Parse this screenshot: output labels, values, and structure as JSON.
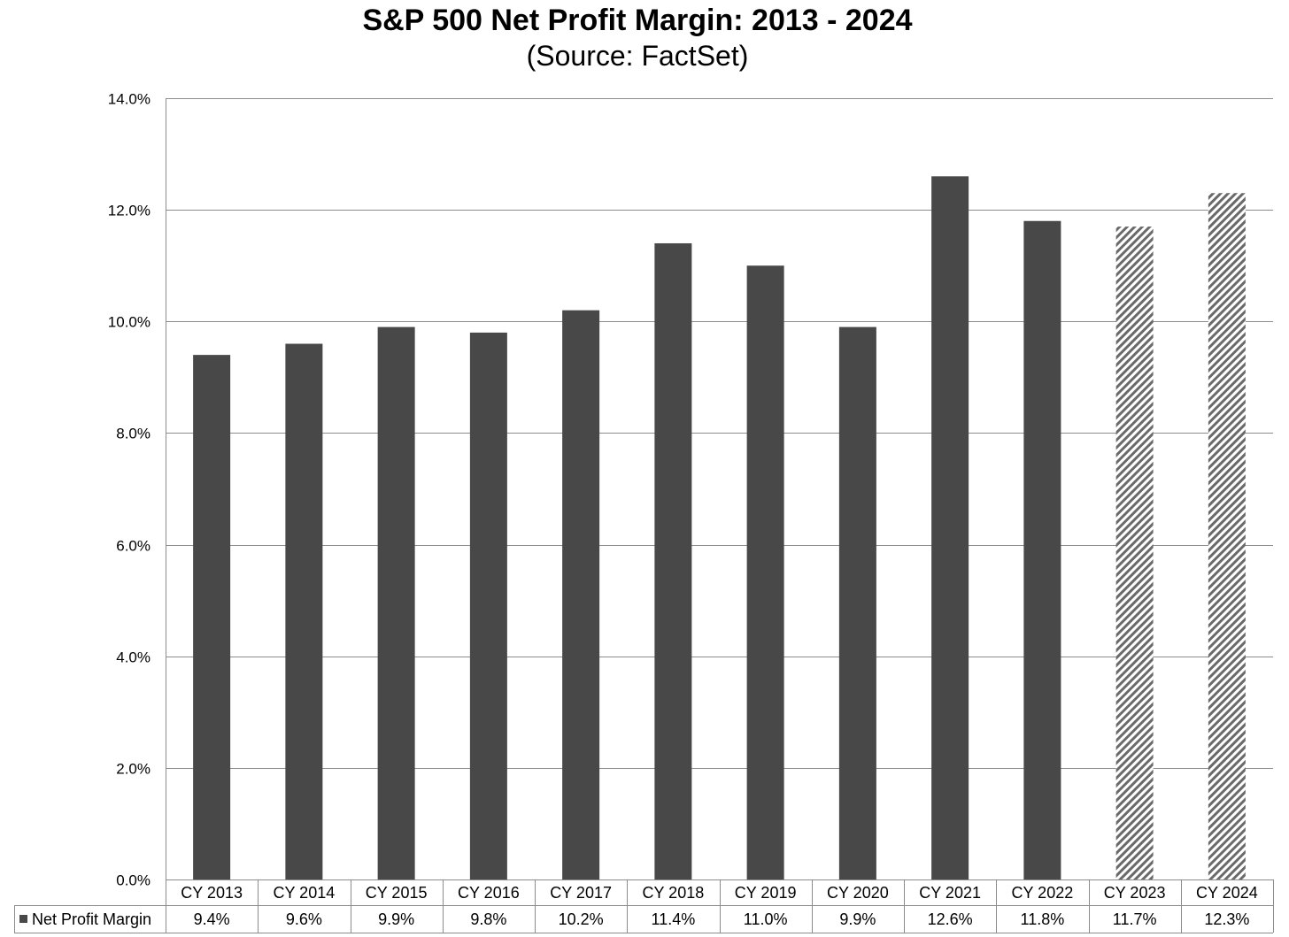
{
  "chart_data": {
    "type": "bar",
    "title": "S&P 500 Net Profit Margin: 2013 - 2024",
    "subtitle": "(Source: FactSet)",
    "categories": [
      "CY 2013",
      "CY 2014",
      "CY 2015",
      "CY 2016",
      "CY 2017",
      "CY 2018",
      "CY 2019",
      "CY 2020",
      "CY 2021",
      "CY 2022",
      "CY 2023",
      "CY 2024"
    ],
    "series": [
      {
        "name": "Net Profit Margin",
        "values": [
          9.4,
          9.6,
          9.9,
          9.8,
          10.2,
          11.4,
          11.0,
          9.9,
          12.6,
          11.8,
          11.7,
          12.3
        ],
        "value_labels": [
          "9.4%",
          "9.6%",
          "9.9%",
          "9.8%",
          "10.2%",
          "11.4%",
          "11.0%",
          "9.9%",
          "12.6%",
          "11.8%",
          "11.7%",
          "12.3%"
        ],
        "color": "#484848",
        "hatched_categories": [
          "CY 2023",
          "CY 2024"
        ]
      }
    ],
    "ylim": [
      0,
      14
    ],
    "yticks": [
      0,
      2,
      4,
      6,
      8,
      10,
      12,
      14
    ],
    "ytick_labels": [
      "0.0%",
      "2.0%",
      "4.0%",
      "6.0%",
      "8.0%",
      "10.0%",
      "12.0%",
      "14.0%"
    ],
    "grid": true,
    "legend": "data-table-bottom",
    "xlabel": "",
    "ylabel": ""
  }
}
